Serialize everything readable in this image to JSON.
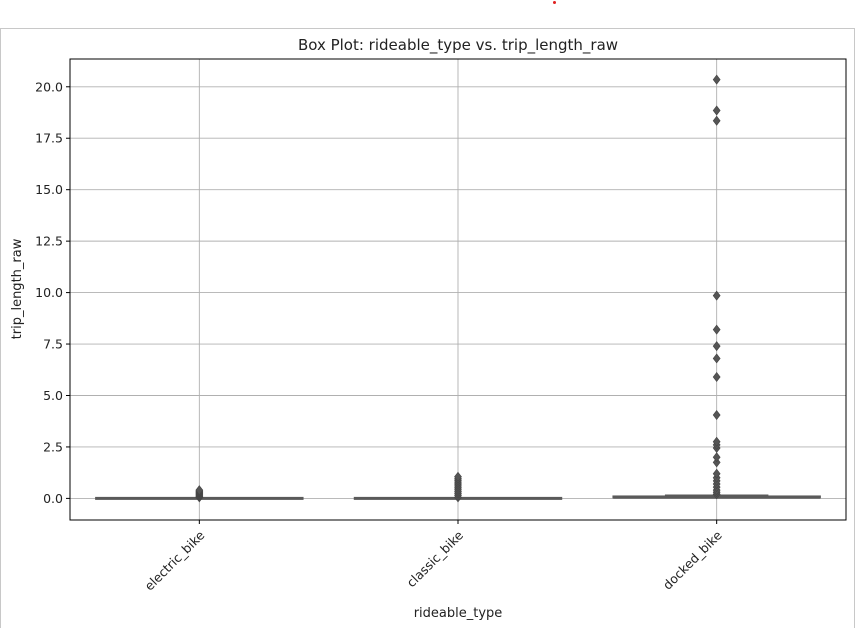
{
  "chart_data": {
    "type": "box",
    "title": "Box Plot: rideable_type vs. trip_length_raw",
    "xlabel": "rideable_type",
    "ylabel": "trip_length_raw",
    "ylim": [
      -1.05,
      21.35
    ],
    "yticks": [
      "0.0",
      "2.5",
      "5.0",
      "7.5",
      "10.0",
      "12.5",
      "15.0",
      "17.5",
      "20.0"
    ],
    "ytick_values": [
      0,
      2.5,
      5,
      7.5,
      10,
      12.5,
      15,
      17.5,
      20
    ],
    "grid": true,
    "colors": {
      "box": "#5a5a5a",
      "grid": "#b0b0b0",
      "flier": "#555555"
    },
    "categories": [
      "electric_bike",
      "classic_bike",
      "docked_bike"
    ],
    "boxes": [
      {
        "category": "electric_bike",
        "q1": 0.0,
        "median": 0.0,
        "q3": 0.0,
        "whisker_low": 0.0,
        "whisker_high": 0.0,
        "outliers": [
          0.05,
          0.1,
          0.15,
          0.2,
          0.25,
          0.3,
          0.35,
          0.4
        ]
      },
      {
        "category": "classic_bike",
        "q1": 0.0,
        "median": 0.0,
        "q3": 0.0,
        "whisker_low": 0.0,
        "whisker_high": 0.0,
        "outliers": [
          0.05,
          0.15,
          0.25,
          0.35,
          0.45,
          0.55,
          0.65,
          0.75,
          0.85,
          0.95,
          1.05
        ]
      },
      {
        "category": "docked_bike",
        "q1": 0.0,
        "median": 0.02,
        "q3": 0.07,
        "whisker_low": 0.0,
        "whisker_high": 0.15,
        "outliers": [
          0.2,
          0.3,
          0.4,
          0.55,
          0.7,
          0.85,
          1.0,
          1.2,
          1.75,
          2.0,
          2.45,
          2.6,
          2.75,
          4.05,
          5.9,
          6.8,
          7.4,
          8.2,
          9.85,
          18.35,
          18.85,
          20.35
        ]
      }
    ]
  }
}
